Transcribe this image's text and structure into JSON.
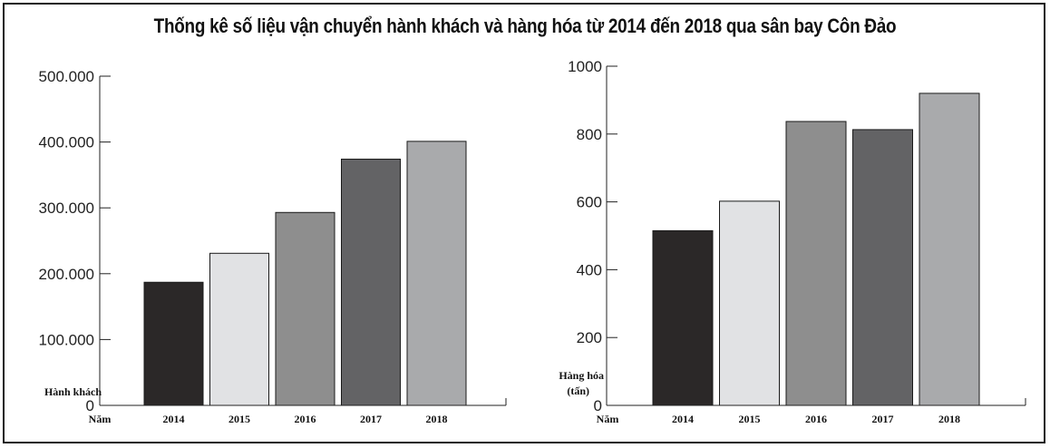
{
  "title": "Thống kê số liệu vận chuyển hành khách và hàng hóa từ 2014 đến 2018 qua sân bay Côn Đảo",
  "chart_data": [
    {
      "type": "bar",
      "categories": [
        "2014",
        "2015",
        "2016",
        "2017",
        "2018"
      ],
      "values": [
        187000,
        231000,
        293000,
        374000,
        401000
      ],
      "xlabel": "Năm",
      "ylabel": "Hành khách",
      "ylim": [
        0,
        500000
      ],
      "yticks": [
        "0",
        "100.000",
        "200.000",
        "300.000",
        "400.000",
        "500.000"
      ],
      "colors": [
        "#2b2828",
        "#e1e2e4",
        "#8e8e8e",
        "#636365",
        "#a9aaac"
      ],
      "grid": false,
      "legend": "none"
    },
    {
      "type": "bar",
      "categories": [
        "2014",
        "2015",
        "2016",
        "2017",
        "2018"
      ],
      "values": [
        515,
        602,
        837,
        813,
        920
      ],
      "xlabel": "Năm",
      "ylabel": "Hàng hóa (tấn)",
      "ylabel_lines": [
        "Hàng hóa",
        "(tấn)"
      ],
      "ylim": [
        0,
        1000
      ],
      "yticks": [
        "0",
        "200",
        "400",
        "600",
        "800",
        "1000"
      ],
      "colors": [
        "#2b2828",
        "#e1e2e4",
        "#8e8e8e",
        "#636365",
        "#a9aaac"
      ],
      "grid": false,
      "legend": "none"
    }
  ]
}
